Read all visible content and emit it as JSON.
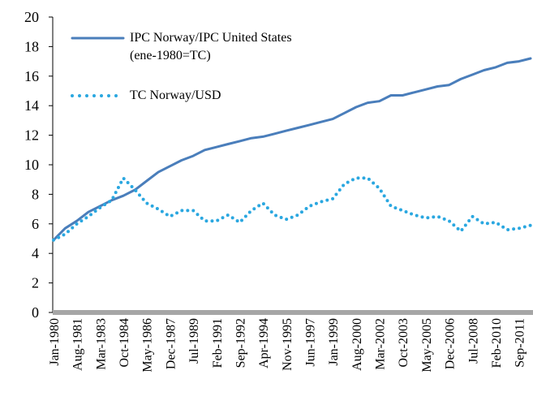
{
  "chart_data": {
    "type": "line",
    "categories": [
      "Jan-1980",
      null,
      "Aug-1981",
      null,
      "Mar-1983",
      null,
      "Oct-1984",
      null,
      "May-1986",
      null,
      "Dec-1987",
      null,
      "Jul-1989",
      null,
      "Feb-1991",
      null,
      "Sep-1992",
      null,
      "Apr-1994",
      null,
      "Nov-1995",
      null,
      "Jun-1997",
      null,
      "Jan-1999",
      null,
      "Aug-2000",
      null,
      "Mar-2002",
      null,
      "Oct-2003",
      null,
      "May-2005",
      null,
      "Dec-2006",
      null,
      "Jul-2008",
      null,
      "Feb-2010",
      null,
      "Sep-2011",
      null
    ],
    "series": [
      {
        "name": "IPC Norway/IPC United States (ene-1980=TC)",
        "color": "#4a7ebb",
        "style": "solid",
        "values": [
          4.9,
          5.7,
          6.2,
          6.8,
          7.2,
          7.6,
          7.9,
          8.3,
          8.9,
          9.5,
          9.9,
          10.3,
          10.6,
          11.0,
          11.2,
          11.4,
          11.6,
          11.8,
          11.9,
          12.1,
          12.3,
          12.5,
          12.7,
          12.9,
          13.1,
          13.5,
          13.9,
          14.2,
          14.3,
          14.7,
          14.7,
          14.9,
          15.1,
          15.3,
          15.4,
          15.8,
          16.1,
          16.4,
          16.6,
          16.9,
          17.0,
          17.2
        ]
      },
      {
        "name": "TC Norway/USD",
        "color": "#2aa7e0",
        "style": "dotted",
        "values": [
          4.9,
          5.3,
          6.0,
          6.5,
          7.1,
          7.6,
          9.1,
          8.3,
          7.4,
          7.0,
          6.5,
          6.9,
          6.9,
          6.2,
          6.2,
          6.6,
          6.1,
          6.9,
          7.4,
          6.6,
          6.3,
          6.6,
          7.2,
          7.5,
          7.7,
          8.7,
          9.1,
          9.1,
          8.4,
          7.2,
          6.9,
          6.6,
          6.4,
          6.5,
          6.2,
          5.5,
          6.5,
          6.0,
          6.1,
          5.6,
          5.7,
          5.9
        ]
      }
    ],
    "ylim": [
      0,
      20
    ],
    "yticks": [
      0,
      2,
      4,
      6,
      8,
      10,
      12,
      14,
      16,
      18,
      20
    ],
    "grid": false,
    "legend": "top-left"
  }
}
